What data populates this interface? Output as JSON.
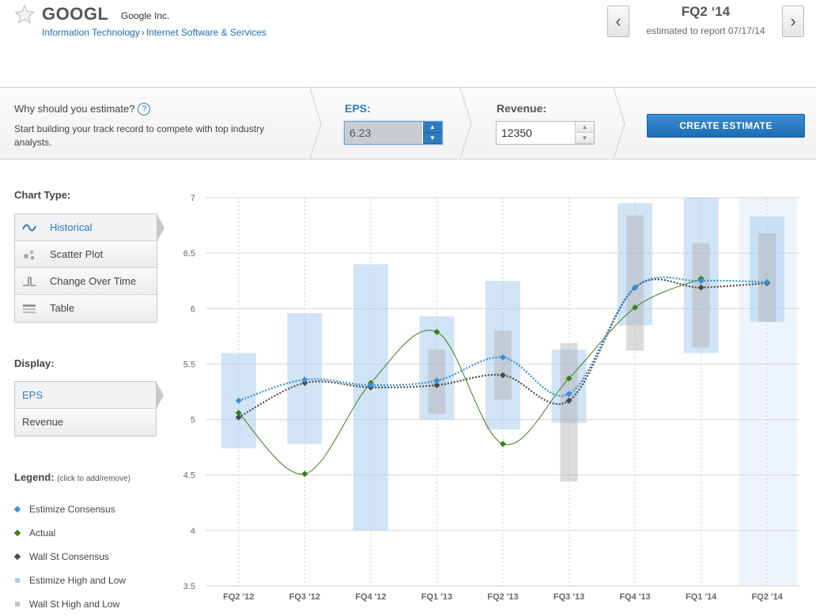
{
  "header": {
    "ticker": "GOOGL",
    "company": "Google Inc.",
    "sector": "Information Technology",
    "crumb_sep": "›",
    "industry": "Internet Software & Services",
    "quarter": "FQ2 ‘14",
    "report_note": "estimated to report 07/17/14",
    "prev_label": "‹",
    "next_label": "›"
  },
  "estimate": {
    "why_label": "Why should you estimate?",
    "help_label": "?",
    "description": "Start building your track record to compete with top industry analysts.",
    "eps_label": "EPS:",
    "eps_value": "6.23",
    "revenue_label": "Revenue:",
    "revenue_value": "12350",
    "up_label": "▲",
    "down_label": "▼",
    "create_label": "CREATE ESTIMATE"
  },
  "sidebar": {
    "chart_type_label": "Chart Type:",
    "chart_types": [
      "Historical",
      "Scatter Plot",
      "Change Over Time",
      "Table"
    ],
    "display_label": "Display:",
    "display_options": [
      "EPS",
      "Revenue"
    ],
    "legend_label": "Legend:",
    "legend_hint": "(click to add/remove)",
    "legend": [
      {
        "label": "Estimize Consensus",
        "color": "#3a8fd9"
      },
      {
        "label": "Actual",
        "color": "#3d7f1a"
      },
      {
        "label": "Wall St Consensus",
        "color": "#4a4a4a"
      },
      {
        "label": "Estimize High and Low",
        "color": "#a9cdef"
      },
      {
        "label": "Wall St High and Low",
        "color": "#c4c4c4"
      }
    ]
  },
  "colors": {
    "accent": "#2e7cc0",
    "estimize": "#3a8fd9",
    "actual": "#3d7f1a",
    "wallst": "#4a4a4a"
  },
  "chart_data": {
    "type": "line",
    "ylim": [
      3.5,
      7
    ],
    "yticks": [
      "3.5",
      "4",
      "4.5",
      "5",
      "5.5",
      "6",
      "6.5",
      "7"
    ],
    "categories": [
      "FQ2 '12",
      "FQ3 '12",
      "FQ4 '12",
      "FQ1 '13",
      "FQ2 '13",
      "FQ3 '13",
      "FQ4 '13",
      "FQ1 '14",
      "FQ2 '14"
    ],
    "series": [
      {
        "name": "Estimize Consensus",
        "values": [
          5.17,
          5.36,
          5.31,
          5.35,
          5.56,
          5.23,
          6.19,
          6.25,
          6.24
        ]
      },
      {
        "name": "Actual",
        "values": [
          5.06,
          4.51,
          5.33,
          5.79,
          4.78,
          5.37,
          6.01,
          6.27,
          null
        ]
      },
      {
        "name": "Wall St Consensus",
        "values": [
          5.02,
          5.33,
          5.29,
          5.31,
          5.4,
          5.17,
          6.19,
          6.19,
          6.23
        ]
      }
    ],
    "estimize_range": [
      [
        4.74,
        5.6
      ],
      [
        4.78,
        5.96
      ],
      [
        4.0,
        6.4
      ],
      [
        5.0,
        5.93
      ],
      [
        4.91,
        6.25
      ],
      [
        4.97,
        5.63
      ],
      [
        5.85,
        6.95
      ],
      [
        5.6,
        7.0
      ],
      [
        5.88,
        6.83
      ]
    ],
    "wallst_range": [
      [
        null,
        null
      ],
      [
        null,
        null
      ],
      [
        null,
        null
      ],
      [
        5.05,
        5.63
      ],
      [
        5.18,
        5.8
      ],
      [
        4.44,
        5.69
      ],
      [
        5.62,
        6.84
      ],
      [
        5.65,
        6.59
      ],
      [
        5.88,
        6.68
      ]
    ],
    "grid": true
  }
}
